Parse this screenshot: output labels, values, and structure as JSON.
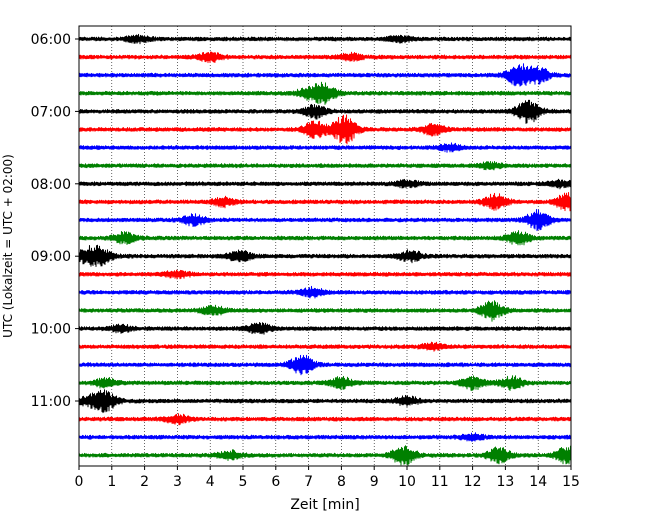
{
  "chart_data": {
    "type": "line",
    "title": "",
    "xlabel": "Zeit  [min]",
    "ylabel": "UTC (Lokalzeit = UTC + 02:00)",
    "xlim": [
      0,
      15
    ],
    "x_ticks": [
      "0",
      "1",
      "2",
      "3",
      "4",
      "5",
      "6",
      "7",
      "8",
      "9",
      "10",
      "11",
      "12",
      "13",
      "14",
      "15"
    ],
    "y_ticks": [
      {
        "label": "06:00",
        "row": 0
      },
      {
        "label": "07:00",
        "row": 4
      },
      {
        "label": "08:00",
        "row": 8
      },
      {
        "label": "09:00",
        "row": 12
      },
      {
        "label": "10:00",
        "row": 16
      },
      {
        "label": "11:00",
        "row": 20
      }
    ],
    "row_interval_min": 15,
    "colors": [
      "#000000",
      "#ff0000",
      "#0000ff",
      "#008000"
    ],
    "grid": "vertical dotted",
    "series": [
      {
        "row": 0,
        "color": "#000000",
        "events": [
          {
            "t": 1.8,
            "amp": 3
          },
          {
            "t": 9.8,
            "amp": 2.5
          }
        ]
      },
      {
        "row": 1,
        "color": "#ff0000",
        "events": [
          {
            "t": 4.0,
            "amp": 4
          },
          {
            "t": 8.3,
            "amp": 3
          }
        ]
      },
      {
        "row": 2,
        "color": "#0000ff",
        "events": [
          {
            "t": 13.4,
            "amp": 10
          },
          {
            "t": 14.0,
            "amp": 7
          }
        ]
      },
      {
        "row": 3,
        "color": "#008000",
        "events": [
          {
            "t": 7.5,
            "amp": 9
          },
          {
            "t": 7.0,
            "amp": 5
          }
        ]
      },
      {
        "row": 4,
        "color": "#000000",
        "events": [
          {
            "t": 13.7,
            "amp": 11
          },
          {
            "t": 7.2,
            "amp": 6
          }
        ]
      },
      {
        "row": 5,
        "color": "#ff0000",
        "events": [
          {
            "t": 8.1,
            "amp": 14
          },
          {
            "t": 7.2,
            "amp": 8
          },
          {
            "t": 10.8,
            "amp": 5
          }
        ]
      },
      {
        "row": 6,
        "color": "#0000ff",
        "events": [
          {
            "t": 11.3,
            "amp": 3
          }
        ]
      },
      {
        "row": 7,
        "color": "#008000",
        "events": [
          {
            "t": 12.5,
            "amp": 3
          }
        ]
      },
      {
        "row": 8,
        "color": "#000000",
        "events": [
          {
            "t": 10.0,
            "amp": 3
          },
          {
            "t": 14.7,
            "amp": 3
          }
        ]
      },
      {
        "row": 9,
        "color": "#ff0000",
        "events": [
          {
            "t": 4.4,
            "amp": 4
          },
          {
            "t": 12.7,
            "amp": 7
          },
          {
            "t": 14.9,
            "amp": 8
          }
        ]
      },
      {
        "row": 10,
        "color": "#0000ff",
        "events": [
          {
            "t": 14.0,
            "amp": 9
          },
          {
            "t": 3.5,
            "amp": 5
          }
        ]
      },
      {
        "row": 11,
        "color": "#008000",
        "events": [
          {
            "t": 1.4,
            "amp": 5
          },
          {
            "t": 13.4,
            "amp": 6
          }
        ]
      },
      {
        "row": 12,
        "color": "#000000",
        "events": [
          {
            "t": 0.3,
            "amp": 7
          },
          {
            "t": 0.7,
            "amp": 6
          },
          {
            "t": 4.9,
            "amp": 5
          },
          {
            "t": 10.1,
            "amp": 5
          }
        ]
      },
      {
        "row": 13,
        "color": "#ff0000",
        "events": [
          {
            "t": 3.0,
            "amp": 3
          }
        ]
      },
      {
        "row": 14,
        "color": "#0000ff",
        "events": [
          {
            "t": 7.1,
            "amp": 4
          }
        ]
      },
      {
        "row": 15,
        "color": "#008000",
        "events": [
          {
            "t": 12.6,
            "amp": 9
          },
          {
            "t": 4.1,
            "amp": 4
          }
        ]
      },
      {
        "row": 16,
        "color": "#000000",
        "events": [
          {
            "t": 5.5,
            "amp": 5
          },
          {
            "t": 1.3,
            "amp": 3
          }
        ]
      },
      {
        "row": 17,
        "color": "#ff0000",
        "events": [
          {
            "t": 10.8,
            "amp": 3
          }
        ]
      },
      {
        "row": 18,
        "color": "#0000ff",
        "events": [
          {
            "t": 6.8,
            "amp": 9
          }
        ]
      },
      {
        "row": 19,
        "color": "#008000",
        "events": [
          {
            "t": 12.0,
            "amp": 6
          },
          {
            "t": 13.2,
            "amp": 6
          },
          {
            "t": 8.0,
            "amp": 5
          },
          {
            "t": 0.8,
            "amp": 4
          }
        ]
      },
      {
        "row": 20,
        "color": "#000000",
        "events": [
          {
            "t": 0.8,
            "amp": 9
          },
          {
            "t": 0.3,
            "amp": 4
          },
          {
            "t": 10.0,
            "amp": 4
          }
        ]
      },
      {
        "row": 21,
        "color": "#ff0000",
        "events": [
          {
            "t": 3.0,
            "amp": 4
          }
        ]
      },
      {
        "row": 22,
        "color": "#0000ff",
        "events": [
          {
            "t": 12.0,
            "amp": 3
          }
        ]
      },
      {
        "row": 23,
        "color": "#008000",
        "events": [
          {
            "t": 9.9,
            "amp": 9
          },
          {
            "t": 12.8,
            "amp": 7
          },
          {
            "t": 14.9,
            "amp": 8
          },
          {
            "t": 4.6,
            "amp": 4
          }
        ]
      }
    ]
  }
}
